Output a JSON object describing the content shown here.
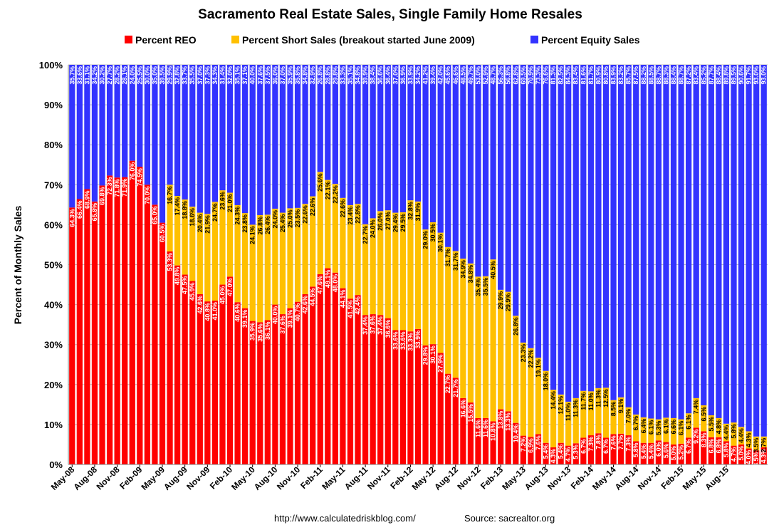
{
  "chart_data": {
    "type": "bar",
    "stacked": true,
    "title": "Sacramento Real Estate Sales, Single Family Home Resales",
    "xlabel": "",
    "ylabel": "Percent of Monthly Sales",
    "ylim": [
      0,
      100
    ],
    "yticks": [
      "0%",
      "10%",
      "20%",
      "30%",
      "40%",
      "50%",
      "60%",
      "70%",
      "80%",
      "90%",
      "100%"
    ],
    "grid": true,
    "legend_position": "top",
    "start_month": "2008-05",
    "xtick_labels": [
      "May-08",
      "Aug-08",
      "Nov-08",
      "Feb-09",
      "May-09",
      "Aug-09",
      "Nov-09",
      "Feb-10",
      "May-10",
      "Aug-10",
      "Nov-10",
      "Feb-11",
      "May-11",
      "Aug-11",
      "Nov-11",
      "Feb-12",
      "May-12",
      "Aug-12",
      "Nov-12",
      "Feb-13",
      "May-13",
      "Aug-13",
      "Nov-13",
      "Feb-14",
      "May-14",
      "Aug-14",
      "Nov-14",
      "Feb-15",
      "May-15",
      "Aug-15"
    ],
    "colors": {
      "reo": "#ff0000",
      "short": "#ffc000",
      "equity": "#3333ff"
    },
    "series": [
      {
        "name": "Percent REO",
        "values": [
          64.3,
          66.4,
          68.9,
          65.8,
          69.8,
          72.3,
          71.8,
          71.9,
          76.0,
          74.5,
          70.0,
          65.0,
          60.5,
          53.3,
          49.8,
          47.5,
          45.9,
          42.6,
          40.8,
          41.0,
          45.0,
          47.0,
          40.6,
          39.1,
          35.9,
          35.6,
          36.1,
          40.0,
          37.6,
          39.1,
          40.7,
          42.6,
          44.5,
          47.6,
          49.1,
          48.0,
          44.1,
          41.5,
          42.4,
          37.4,
          37.6,
          37.4,
          36.6,
          33.6,
          33.6,
          33.3,
          33.9,
          29.8,
          30.1,
          27.9,
          22.7,
          21.7,
          16.6,
          15.5,
          11.6,
          11.6,
          10.8,
          13.8,
          13.3,
          10.4,
          7.2,
          6.9,
          7.6,
          5.4,
          4.3,
          5.4,
          4.7,
          5.3,
          6.7,
          7.3,
          7.8,
          6.7,
          7.6,
          7.7,
          7.3,
          5.8,
          5.4,
          5.4,
          6.0,
          5.6,
          5.0,
          5.2,
          6.7,
          9.2,
          8.3,
          6.8,
          6.8,
          5.8,
          4.7,
          5.0,
          4.0,
          3.5,
          4.3
        ]
      },
      {
        "name": "Percent Short Sales (breakout started June 2009)",
        "values": [
          0,
          0,
          0,
          0,
          0,
          0,
          0,
          0,
          0,
          0,
          0,
          0,
          0,
          16.7,
          17.4,
          18.8,
          18.6,
          20.4,
          21.9,
          24.7,
          23.6,
          21.0,
          24.3,
          23.8,
          24.1,
          26.8,
          26.4,
          24.0,
          25.4,
          25.0,
          23.5,
          22.6,
          22.6,
          25.6,
          22.1,
          22.2,
          22.6,
          23.4,
          22.8,
          22.7,
          24.0,
          26.0,
          27.0,
          29.4,
          29.5,
          32.8,
          31.9,
          29.0,
          30.5,
          30.1,
          31.7,
          31.7,
          34.9,
          34.8,
          35.4,
          35.5,
          40.5,
          29.9,
          29.9,
          26.8,
          23.3,
          22.2,
          19.1,
          18.0,
          14.4,
          12.1,
          11.0,
          11.3,
          11.7,
          11.0,
          11.3,
          12.5,
          8.5,
          9.1,
          7.0,
          6.7,
          6.4,
          6.1,
          5.3,
          6.1,
          6.6,
          6.1,
          6.1,
          7.4,
          6.5,
          5.5,
          4.8,
          4.4,
          5.8,
          4.4,
          4.3,
          3.5,
          2.7
        ]
      },
      {
        "name": "Percent Equity Sales",
        "values": [
          35.7,
          33.6,
          31.1,
          34.2,
          30.2,
          27.7,
          28.2,
          28.1,
          24.0,
          25.5,
          30.0,
          35.0,
          39.5,
          29.9,
          32.8,
          33.7,
          35.5,
          37.0,
          37.3,
          34.3,
          31.4,
          32.0,
          35.1,
          37.1,
          40.0,
          37.6,
          37.5,
          36.0,
          37.0,
          35.9,
          35.8,
          34.8,
          32.9,
          26.8,
          28.8,
          29.8,
          33.3,
          35.1,
          34.8,
          39.9,
          38.4,
          36.6,
          36.4,
          37.0,
          36.9,
          33.9,
          34.2,
          41.2,
          39.4,
          42.0,
          45.6,
          46.6,
          48.5,
          49.7,
          53.0,
          52.9,
          48.7,
          56.3,
          56.8,
          62.8,
          69.5,
          70.9,
          73.3,
          76.6,
          81.3,
          82.5,
          84.3,
          83.4,
          81.6,
          81.7,
          80.9,
          80.8,
          83.9,
          83.2,
          85.7,
          87.5,
          88.2,
          88.5,
          88.7,
          88.3,
          88.4,
          88.7,
          87.2,
          83.4,
          85.2,
          87.7,
          88.4,
          89.8,
          89.5,
          90.6,
          91.7,
          93.0,
          93.0
        ]
      }
    ]
  },
  "footer": {
    "url": "http://www.calculatedriskblog.com/",
    "source": "Source: sacrealtor.org"
  }
}
